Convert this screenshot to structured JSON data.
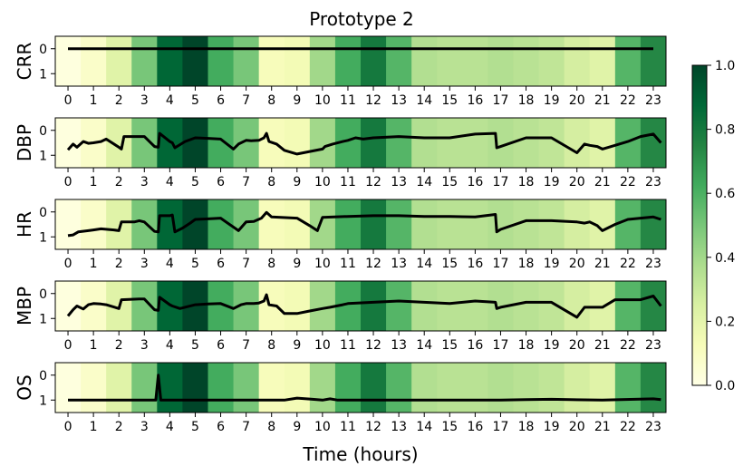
{
  "chart_data": {
    "type": "heatmap",
    "title": "Prototype 2",
    "xlabel": "Time (hours)",
    "x_ticks": [
      "0",
      "1",
      "2",
      "3",
      "4",
      "5",
      "6",
      "7",
      "8",
      "9",
      "10",
      "11",
      "12",
      "13",
      "14",
      "15",
      "16",
      "17",
      "18",
      "19",
      "20",
      "21",
      "22",
      "23"
    ],
    "y_ticks": [
      "0",
      "1"
    ],
    "xlim": [
      -0.5,
      23.5
    ],
    "ylim": [
      1.5,
      -0.5
    ],
    "heatmap": {
      "description_values_per_hour": [
        0.02,
        0.08,
        0.22,
        0.5,
        0.88,
        1.0,
        0.62,
        0.5,
        0.12,
        0.14,
        0.4,
        0.62,
        0.8,
        0.58,
        0.36,
        0.34,
        0.34,
        0.36,
        0.34,
        0.32,
        0.26,
        0.22,
        0.58,
        0.74
      ],
      "colorscale": "Greens",
      "vmin": 0.0,
      "vmax": 1.0
    },
    "colorbar": {
      "ticks": [
        "0.0",
        "0.2",
        "0.4",
        "0.6",
        "0.8",
        "1.0"
      ],
      "range": [
        0.0,
        1.0
      ]
    },
    "series": [
      {
        "name": "CRR",
        "points": [
          [
            0,
            0
          ],
          [
            23,
            0
          ]
        ]
      },
      {
        "name": "DBP",
        "points": [
          [
            0,
            0.78
          ],
          [
            0.2,
            0.55
          ],
          [
            0.35,
            0.68
          ],
          [
            0.6,
            0.45
          ],
          [
            0.8,
            0.52
          ],
          [
            1.0,
            0.5
          ],
          [
            1.3,
            0.45
          ],
          [
            1.5,
            0.35
          ],
          [
            2.0,
            0.68
          ],
          [
            2.1,
            0.75
          ],
          [
            2.2,
            0.25
          ],
          [
            2.8,
            0.25
          ],
          [
            3.0,
            0.25
          ],
          [
            3.4,
            0.65
          ],
          [
            3.55,
            0.68
          ],
          [
            3.6,
            0.12
          ],
          [
            4.0,
            0.45
          ],
          [
            4.1,
            0.5
          ],
          [
            4.2,
            0.7
          ],
          [
            4.6,
            0.45
          ],
          [
            5.0,
            0.3
          ],
          [
            5.5,
            0.32
          ],
          [
            6.0,
            0.35
          ],
          [
            6.5,
            0.75
          ],
          [
            6.7,
            0.55
          ],
          [
            7.0,
            0.4
          ],
          [
            7.2,
            0.42
          ],
          [
            7.5,
            0.4
          ],
          [
            7.7,
            0.3
          ],
          [
            7.8,
            0.12
          ],
          [
            7.9,
            0.45
          ],
          [
            8.2,
            0.55
          ],
          [
            8.5,
            0.8
          ],
          [
            9.0,
            0.95
          ],
          [
            9.5,
            0.85
          ],
          [
            10.0,
            0.75
          ],
          [
            10.1,
            0.65
          ],
          [
            10.4,
            0.55
          ],
          [
            10.8,
            0.45
          ],
          [
            11.0,
            0.4
          ],
          [
            11.3,
            0.3
          ],
          [
            11.6,
            0.35
          ],
          [
            12.0,
            0.3
          ],
          [
            13.0,
            0.25
          ],
          [
            14.0,
            0.3
          ],
          [
            15.0,
            0.3
          ],
          [
            16.0,
            0.15
          ],
          [
            16.8,
            0.12
          ],
          [
            16.85,
            0.7
          ],
          [
            17.0,
            0.65
          ],
          [
            18.0,
            0.3
          ],
          [
            19.0,
            0.3
          ],
          [
            20.0,
            0.9
          ],
          [
            20.3,
            0.55
          ],
          [
            20.5,
            0.6
          ],
          [
            20.8,
            0.65
          ],
          [
            21.0,
            0.75
          ],
          [
            21.5,
            0.6
          ],
          [
            22.0,
            0.45
          ],
          [
            22.5,
            0.25
          ],
          [
            23.0,
            0.15
          ],
          [
            23.3,
            0.5
          ]
        ]
      },
      {
        "name": "HR",
        "points": [
          [
            0,
            0.95
          ],
          [
            0.2,
            0.92
          ],
          [
            0.4,
            0.8
          ],
          [
            0.8,
            0.75
          ],
          [
            1.0,
            0.72
          ],
          [
            1.3,
            0.68
          ],
          [
            1.8,
            0.72
          ],
          [
            2.0,
            0.75
          ],
          [
            2.1,
            0.4
          ],
          [
            2.6,
            0.4
          ],
          [
            2.8,
            0.35
          ],
          [
            3.0,
            0.4
          ],
          [
            3.4,
            0.78
          ],
          [
            3.55,
            0.8
          ],
          [
            3.6,
            0.15
          ],
          [
            4.0,
            0.15
          ],
          [
            4.1,
            0.12
          ],
          [
            4.2,
            0.8
          ],
          [
            4.5,
            0.65
          ],
          [
            4.8,
            0.45
          ],
          [
            5.0,
            0.3
          ],
          [
            5.5,
            0.28
          ],
          [
            6.0,
            0.25
          ],
          [
            6.7,
            0.75
          ],
          [
            7.0,
            0.4
          ],
          [
            7.3,
            0.38
          ],
          [
            7.6,
            0.25
          ],
          [
            7.8,
            0.02
          ],
          [
            8.0,
            0.2
          ],
          [
            9.0,
            0.25
          ],
          [
            9.5,
            0.55
          ],
          [
            9.8,
            0.75
          ],
          [
            10.0,
            0.22
          ],
          [
            11.0,
            0.18
          ],
          [
            12.0,
            0.15
          ],
          [
            13.0,
            0.15
          ],
          [
            14.0,
            0.18
          ],
          [
            15.0,
            0.18
          ],
          [
            16.0,
            0.2
          ],
          [
            16.8,
            0.1
          ],
          [
            16.85,
            0.8
          ],
          [
            17.0,
            0.7
          ],
          [
            18.0,
            0.35
          ],
          [
            19.0,
            0.35
          ],
          [
            20.0,
            0.4
          ],
          [
            20.3,
            0.45
          ],
          [
            20.5,
            0.4
          ],
          [
            20.8,
            0.55
          ],
          [
            21.0,
            0.75
          ],
          [
            21.5,
            0.5
          ],
          [
            22.0,
            0.3
          ],
          [
            22.5,
            0.25
          ],
          [
            23.0,
            0.2
          ],
          [
            23.3,
            0.3
          ]
        ]
      },
      {
        "name": "MBP",
        "points": [
          [
            0,
            0.9
          ],
          [
            0.2,
            0.65
          ],
          [
            0.35,
            0.5
          ],
          [
            0.6,
            0.62
          ],
          [
            0.8,
            0.45
          ],
          [
            1.0,
            0.4
          ],
          [
            1.3,
            0.42
          ],
          [
            1.5,
            0.45
          ],
          [
            2.0,
            0.6
          ],
          [
            2.1,
            0.25
          ],
          [
            2.8,
            0.22
          ],
          [
            3.0,
            0.22
          ],
          [
            3.4,
            0.65
          ],
          [
            3.55,
            0.68
          ],
          [
            3.6,
            0.15
          ],
          [
            4.0,
            0.45
          ],
          [
            4.1,
            0.5
          ],
          [
            4.4,
            0.6
          ],
          [
            5.0,
            0.45
          ],
          [
            5.5,
            0.42
          ],
          [
            6.0,
            0.4
          ],
          [
            6.5,
            0.6
          ],
          [
            6.8,
            0.45
          ],
          [
            7.0,
            0.4
          ],
          [
            7.3,
            0.4
          ],
          [
            7.5,
            0.38
          ],
          [
            7.7,
            0.3
          ],
          [
            7.8,
            0.05
          ],
          [
            7.9,
            0.45
          ],
          [
            8.2,
            0.5
          ],
          [
            8.5,
            0.8
          ],
          [
            9.0,
            0.8
          ],
          [
            9.5,
            0.7
          ],
          [
            10.0,
            0.6
          ],
          [
            10.3,
            0.55
          ],
          [
            10.8,
            0.45
          ],
          [
            11.0,
            0.4
          ],
          [
            12.0,
            0.35
          ],
          [
            13.0,
            0.3
          ],
          [
            14.0,
            0.35
          ],
          [
            15.0,
            0.4
          ],
          [
            16.0,
            0.3
          ],
          [
            16.8,
            0.35
          ],
          [
            16.85,
            0.6
          ],
          [
            17.0,
            0.55
          ],
          [
            18.0,
            0.35
          ],
          [
            19.0,
            0.35
          ],
          [
            20.0,
            0.95
          ],
          [
            20.3,
            0.55
          ],
          [
            20.5,
            0.55
          ],
          [
            21.0,
            0.55
          ],
          [
            21.5,
            0.25
          ],
          [
            22.0,
            0.25
          ],
          [
            22.5,
            0.25
          ],
          [
            23.0,
            0.1
          ],
          [
            23.3,
            0.5
          ]
        ]
      },
      {
        "name": "OS",
        "points": [
          [
            0,
            1
          ],
          [
            3.45,
            1
          ],
          [
            3.55,
            0.0
          ],
          [
            3.65,
            1
          ],
          [
            8.5,
            1
          ],
          [
            9.0,
            0.92
          ],
          [
            9.5,
            0.96
          ],
          [
            10.0,
            1.0
          ],
          [
            10.3,
            0.95
          ],
          [
            10.6,
            1
          ],
          [
            17.0,
            1
          ],
          [
            18.0,
            0.98
          ],
          [
            19.0,
            0.97
          ],
          [
            21.0,
            1
          ],
          [
            23.0,
            0.95
          ],
          [
            23.3,
            0.98
          ]
        ]
      }
    ]
  }
}
